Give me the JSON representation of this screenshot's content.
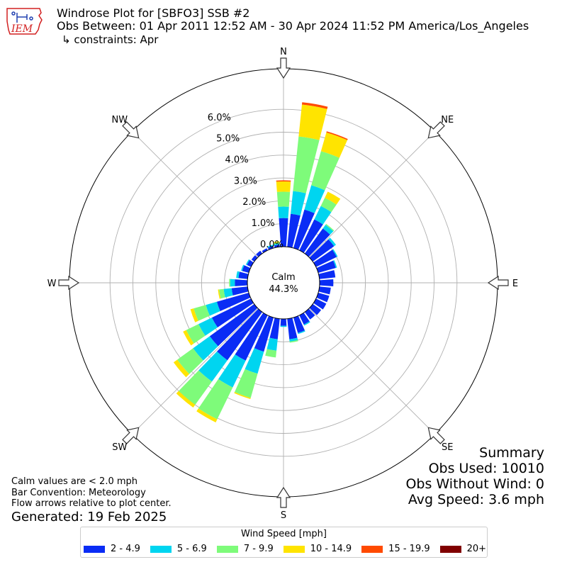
{
  "header": {
    "title": "Windrose Plot for [SBFO3] SSB #2",
    "subtitle": "Obs Between: 01 Apr 2011 12:52 AM - 30 Apr 2024 11:52 PM America/Los_Angeles",
    "constraints": "↳ constraints: Apr",
    "logo_text": "IEM"
  },
  "summary": {
    "heading": "Summary",
    "obs_used": "Obs Used: 10010",
    "obs_without_wind": "Obs Without Wind: 0",
    "avg_speed": "Avg Speed: 3.6 mph"
  },
  "notes": {
    "calm_values": "Calm values are < 2.0 mph",
    "bar_convention": "Bar Convention: Meteorology",
    "flow_arrows": "Flow arrows relative to plot center.",
    "generated": "Generated: 19 Feb 2025"
  },
  "colors": {
    "grid": "#b0b0b0",
    "arrow_fill": "#ffffff",
    "arrow_stroke": "#333333",
    "logo_red": "#d22020",
    "logo_blue": "#2040b0"
  },
  "chart_data": {
    "type": "windrose",
    "center_label": "Calm",
    "calm_percent_label": "44.3%",
    "radial_labels": [
      "0.0%",
      "1.0%",
      "2.0%",
      "3.0%",
      "4.0%",
      "5.0%",
      "6.0%"
    ],
    "radial_values": [
      0,
      1,
      2,
      3,
      4,
      5,
      6
    ],
    "compass_labels": [
      "N",
      "NE",
      "E",
      "SE",
      "S",
      "SW",
      "W",
      "NW"
    ],
    "legend": {
      "title": "Wind Speed [mph]",
      "bins": [
        {
          "label": "2 - 4.9",
          "color": "#0a2cf5"
        },
        {
          "label": "5 - 6.9",
          "color": "#00d5f0"
        },
        {
          "label": "7 - 9.9",
          "color": "#7efb7a"
        },
        {
          "label": "10 - 14.9",
          "color": "#ffe400"
        },
        {
          "label": "15 - 19.9",
          "color": "#ff4a00"
        },
        {
          "label": "20+",
          "color": "#800000"
        }
      ]
    },
    "directions": [
      0,
      10,
      20,
      30,
      40,
      50,
      60,
      70,
      80,
      90,
      100,
      110,
      120,
      130,
      140,
      150,
      160,
      170,
      180,
      190,
      200,
      210,
      220,
      230,
      240,
      250,
      260,
      270,
      280,
      290,
      300,
      310,
      320,
      330,
      340,
      350
    ],
    "series": [
      {
        "name": "2 - 4.9",
        "values": [
          1.25,
          1.45,
          1.75,
          1.5,
          1.35,
          1.15,
          1.0,
          0.8,
          0.7,
          0.6,
          0.5,
          0.5,
          0.5,
          0.45,
          0.4,
          0.45,
          0.7,
          0.9,
          0.3,
          0.9,
          1.55,
          2.2,
          2.6,
          2.4,
          1.9,
          1.45,
          0.7,
          0.55,
          0.4,
          0.3,
          0.2,
          0.15,
          0.15,
          0.1,
          0.1,
          0.1
        ]
      },
      {
        "name": "5 - 6.9",
        "values": [
          0.5,
          1.0,
          1.1,
          0.65,
          0.2,
          0.1,
          0.05,
          0.05,
          0.0,
          0.0,
          0.0,
          0.0,
          0.0,
          0.0,
          0.0,
          0.05,
          0.05,
          0.1,
          0.05,
          0.5,
          1.0,
          1.3,
          1.15,
          0.9,
          0.65,
          0.5,
          0.35,
          0.2,
          0.1,
          0.05,
          0.05,
          0.0,
          0.0,
          0.0,
          0.05,
          0.05
        ]
      },
      {
        "name": "7 - 9.9",
        "values": [
          0.65,
          2.4,
          1.55,
          0.4,
          0.05,
          0.0,
          0.0,
          0.0,
          0.0,
          0.0,
          0.0,
          0.0,
          0.0,
          0.0,
          0.0,
          0.0,
          0.0,
          0.05,
          0.0,
          0.3,
          1.1,
          1.55,
          1.25,
          0.85,
          0.6,
          0.55,
          0.2,
          0.05,
          0.0,
          0.0,
          0.0,
          0.0,
          0.0,
          0.0,
          0.0,
          0.05
        ]
      },
      {
        "name": "10 - 14.9",
        "values": [
          0.45,
          1.4,
          0.85,
          0.3,
          0.0,
          0.0,
          0.0,
          0.0,
          0.0,
          0.0,
          0.0,
          0.0,
          0.0,
          0.0,
          0.0,
          0.0,
          0.0,
          0.0,
          0.0,
          0.0,
          0.05,
          0.15,
          0.15,
          0.2,
          0.15,
          0.15,
          0.05,
          0.0,
          0.0,
          0.0,
          0.0,
          0.0,
          0.0,
          0.0,
          0.0,
          0.05
        ]
      },
      {
        "name": "15 - 19.9",
        "values": [
          0.05,
          0.1,
          0.05,
          0.0,
          0.0,
          0.0,
          0.0,
          0.0,
          0.0,
          0.0,
          0.0,
          0.0,
          0.0,
          0.0,
          0.0,
          0.0,
          0.0,
          0.0,
          0.0,
          0.0,
          0.0,
          0.0,
          0.0,
          0.0,
          0.0,
          0.0,
          0.0,
          0.0,
          0.0,
          0.0,
          0.0,
          0.0,
          0.0,
          0.0,
          0.0,
          0.0
        ]
      },
      {
        "name": "20+",
        "values": [
          0,
          0,
          0,
          0,
          0,
          0,
          0,
          0,
          0,
          0,
          0,
          0,
          0,
          0,
          0,
          0,
          0,
          0,
          0,
          0,
          0,
          0,
          0,
          0,
          0,
          0,
          0,
          0,
          0,
          0,
          0,
          0,
          0,
          0,
          0,
          0
        ]
      }
    ]
  }
}
